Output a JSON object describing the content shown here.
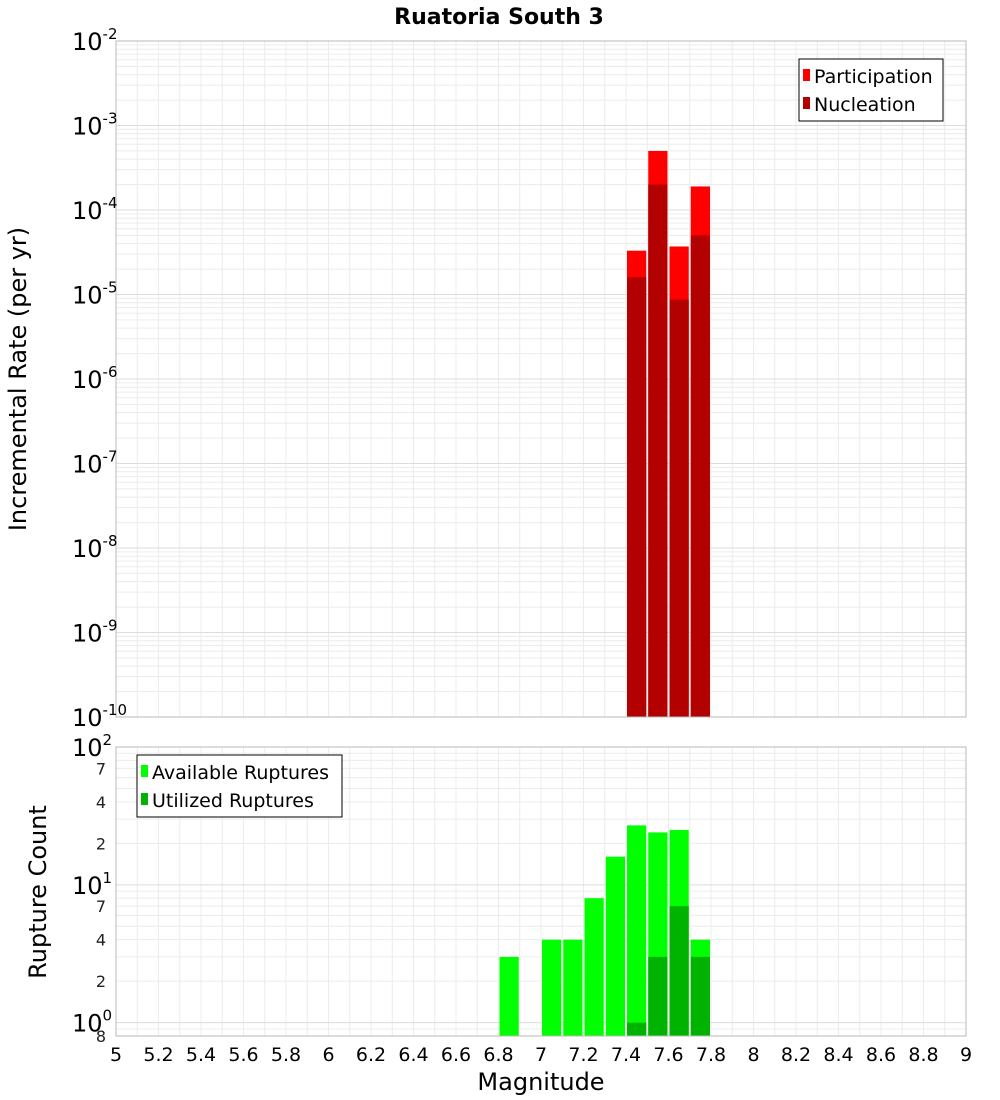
{
  "chart_data": [
    {
      "type": "bar",
      "title": "Ruatoria South 3",
      "ylabel": "Incremental Rate (per yr)",
      "xlabel": "",
      "yscale": "log",
      "ylim": [
        1e-10,
        0.01
      ],
      "xlim": [
        5,
        9
      ],
      "x": [
        7.45,
        7.55,
        7.65,
        7.75
      ],
      "series": [
        {
          "name": "Participation",
          "color": "#ff0000",
          "values": [
            3.3e-05,
            0.0005,
            3.7e-05,
            0.00019
          ]
        },
        {
          "name": "Nucleation",
          "color": "#b30000",
          "values": [
            1.6e-05,
            0.0002,
            8.7e-06,
            5e-05
          ]
        }
      ],
      "y_ticks": [
        {
          "base": "10",
          "exp": "-2"
        },
        {
          "base": "10",
          "exp": "-3"
        },
        {
          "base": "10",
          "exp": "-4"
        },
        {
          "base": "10",
          "exp": "-5"
        },
        {
          "base": "10",
          "exp": "-6"
        },
        {
          "base": "10",
          "exp": "-7"
        },
        {
          "base": "10",
          "exp": "-8"
        },
        {
          "base": "10",
          "exp": "-9"
        },
        {
          "base": "10",
          "exp": "-10"
        }
      ],
      "legend_position": "top-right",
      "grid": true
    },
    {
      "type": "bar",
      "title": "",
      "ylabel": "Rupture Count",
      "xlabel": "Magnitude",
      "yscale": "log",
      "ylim": [
        0.8,
        100
      ],
      "xlim": [
        5,
        9
      ],
      "x": [
        6.85,
        7.05,
        7.15,
        7.25,
        7.35,
        7.45,
        7.55,
        7.65,
        7.75
      ],
      "series": [
        {
          "name": "Available Ruptures",
          "color": "#00ff00",
          "values": [
            3,
            4,
            4,
            8,
            16,
            27,
            24,
            25,
            4
          ]
        },
        {
          "name": "Utilized Ruptures",
          "color": "#00b300",
          "values": [
            0,
            0,
            0,
            0,
            0,
            1,
            3,
            7,
            3
          ]
        }
      ],
      "y_ticks": [
        {
          "base": "10",
          "exp": "2"
        },
        {
          "base": "10",
          "exp": "1"
        },
        {
          "base": "10",
          "exp": "0"
        }
      ],
      "y_minor_labels": [
        "7",
        "4",
        "2",
        "7",
        "4",
        "2",
        "8"
      ],
      "x_ticks": [
        "5",
        "5.2",
        "5.4",
        "5.6",
        "5.8",
        "6",
        "6.2",
        "6.4",
        "6.6",
        "6.8",
        "7",
        "7.2",
        "7.4",
        "7.6",
        "7.8",
        "8",
        "8.2",
        "8.4",
        "8.6",
        "8.8",
        "9"
      ],
      "legend_position": "top-left",
      "grid": true
    }
  ]
}
